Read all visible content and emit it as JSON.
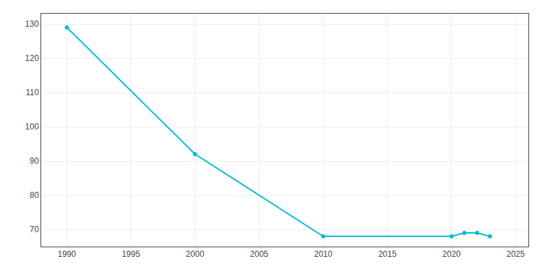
{
  "chart_data": {
    "type": "line",
    "x": [
      1990,
      2000,
      2010,
      2020,
      2021,
      2022,
      2023
    ],
    "values": [
      129,
      92,
      68,
      68,
      69,
      69,
      68
    ],
    "color": "#00bcd4",
    "marker": "circle",
    "line_style": "solid",
    "xlim": [
      1988,
      2026
    ],
    "xticks": [
      1990,
      1995,
      2000,
      2005,
      2010,
      2015,
      2020,
      2025
    ],
    "ylim": [
      65,
      133
    ],
    "yticks": [
      70,
      80,
      90,
      100,
      110,
      120,
      130
    ],
    "grid": true
  }
}
